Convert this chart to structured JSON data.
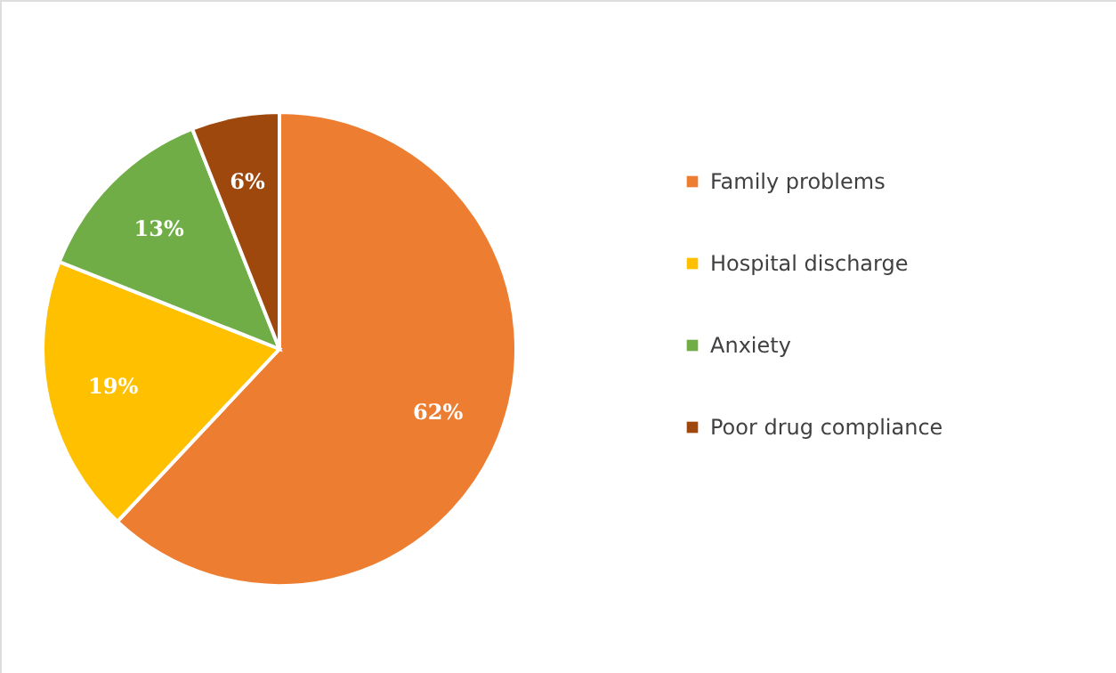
{
  "chart_data": {
    "type": "pie",
    "categories": [
      "Family problems",
      "Hospital discharge",
      "Anxiety",
      "Poor drug compliance"
    ],
    "values": [
      62,
      19,
      13,
      6
    ],
    "colors": [
      "#ed7d31",
      "#ffc000",
      "#70ad47",
      "#9e480e"
    ],
    "value_labels": [
      "62%",
      "19%",
      "13%",
      "6%"
    ],
    "legend": "right"
  }
}
